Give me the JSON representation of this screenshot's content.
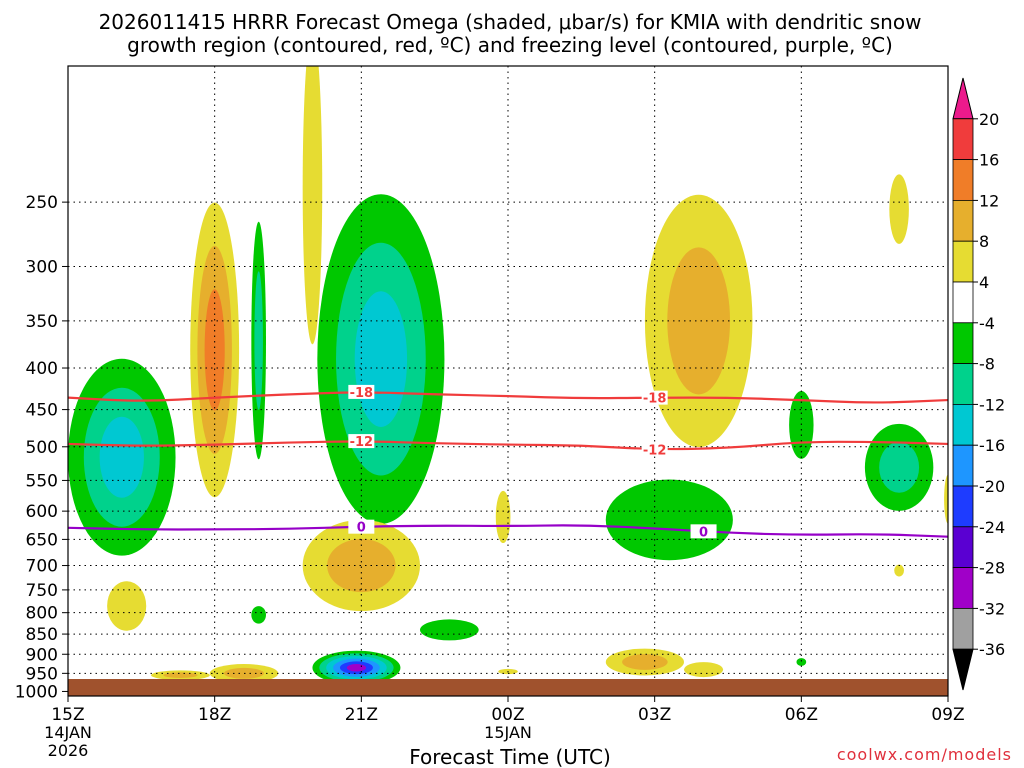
{
  "chart_data": {
    "type": "heatmap",
    "title_line1": "2026011415 HRRR Forecast Omega (shaded, μbar/s) for KMIA with dendritic snow",
    "title_line2": "growth region (contoured, red, ºC) and freezing level (contoured, purple, ºC)",
    "xlabel": "Forecast Time (UTC)",
    "ylabel": "",
    "watermark": "coolwx.com/models",
    "x_axis": {
      "unit": "hours",
      "range": [
        0,
        18
      ],
      "ticks": [
        {
          "h": 0,
          "label": "15Z",
          "sub1": "14JAN",
          "sub2": "2026"
        },
        {
          "h": 3,
          "label": "18Z"
        },
        {
          "h": 6,
          "label": "21Z"
        },
        {
          "h": 9,
          "label": "00Z",
          "sub1": "15JAN"
        },
        {
          "h": 12,
          "label": "03Z"
        },
        {
          "h": 15,
          "label": "06Z"
        },
        {
          "h": 18,
          "label": "09Z"
        }
      ]
    },
    "y_axis": {
      "unit": "hPa",
      "range": [
        1013,
        170
      ],
      "ticks": [
        250,
        300,
        350,
        400,
        450,
        500,
        550,
        600,
        650,
        700,
        750,
        800,
        850,
        900,
        950,
        1000
      ]
    },
    "grid": true,
    "ground_color": "#a0522d",
    "colorbar": {
      "labels": [
        "20",
        "16",
        "12",
        "8",
        "4",
        "-4",
        "-8",
        "-12",
        "-16",
        "-20",
        "-24",
        "-28",
        "-32",
        "-36"
      ],
      "bins": [
        {
          "range": [
            20,
            24
          ],
          "color": "#ec1a8c"
        },
        {
          "range": [
            16,
            20
          ],
          "color": "#f03c3c"
        },
        {
          "range": [
            12,
            16
          ],
          "color": "#f07d28"
        },
        {
          "range": [
            8,
            12
          ],
          "color": "#e6af2d"
        },
        {
          "range": [
            4,
            8
          ],
          "color": "#e6dc32"
        },
        {
          "range": [
            -4,
            4
          ],
          "color": "#ffffff"
        },
        {
          "range": [
            -8,
            -4
          ],
          "color": "#00c800"
        },
        {
          "range": [
            -12,
            -8
          ],
          "color": "#00d28c"
        },
        {
          "range": [
            -16,
            -12
          ],
          "color": "#00c8d2"
        },
        {
          "range": [
            -20,
            -16
          ],
          "color": "#1e96ff"
        },
        {
          "range": [
            -24,
            -20
          ],
          "color": "#1e3cff"
        },
        {
          "range": [
            -28,
            -24
          ],
          "color": "#5a00d2"
        },
        {
          "range": [
            -32,
            -28
          ],
          "color": "#a000c8"
        },
        {
          "range": [
            -36,
            -32
          ],
          "color": "#a0a0a0"
        },
        {
          "range": [
            -40,
            -36
          ],
          "color": "#000000"
        }
      ]
    },
    "omega_features": [
      {
        "h": 1.1,
        "p": 515,
        "rh": 1.1,
        "rp": 140,
        "levels": [
          -4,
          -8,
          -12
        ]
      },
      {
        "h": 1.2,
        "p": 785,
        "rh": 0.4,
        "rp": 55,
        "levels": [
          4
        ]
      },
      {
        "h": 2.3,
        "p": 955,
        "rh": 0.6,
        "rp": 13,
        "levels": [
          4,
          8
        ]
      },
      {
        "h": 3.0,
        "p": 380,
        "rh": 0.5,
        "rp": 150,
        "levels": [
          4,
          8,
          12
        ]
      },
      {
        "h": 3.6,
        "p": 950,
        "rh": 0.7,
        "rp": 25,
        "levels": [
          4,
          8
        ]
      },
      {
        "h": 3.9,
        "p": 370,
        "rh": 0.15,
        "rp": 120,
        "levels": [
          -4,
          -8
        ]
      },
      {
        "h": 3.9,
        "p": 805,
        "rh": 0.15,
        "rp": 20,
        "levels": [
          -4
        ]
      },
      {
        "h": 5.0,
        "p": 240,
        "rh": 0.2,
        "rp": 100,
        "levels": [
          4
        ]
      },
      {
        "h": 6.4,
        "p": 390,
        "rh": 1.3,
        "rp": 170,
        "levels": [
          -4,
          -8,
          -12
        ]
      },
      {
        "h": 6.0,
        "p": 700,
        "rh": 1.2,
        "rp": 90,
        "levels": [
          4,
          8
        ]
      },
      {
        "h": 5.9,
        "p": 935,
        "rh": 0.9,
        "rp": 45,
        "levels": [
          -4,
          -8,
          -12,
          -16,
          -20,
          -28
        ]
      },
      {
        "h": 7.8,
        "p": 840,
        "rh": 0.6,
        "rp": 25,
        "levels": [
          -4
        ]
      },
      {
        "h": 8.9,
        "p": 610,
        "rh": 0.15,
        "rp": 45,
        "levels": [
          4
        ]
      },
      {
        "h": 9.0,
        "p": 945,
        "rh": 0.2,
        "rp": 7,
        "levels": [
          4
        ]
      },
      {
        "h": 11.8,
        "p": 920,
        "rh": 0.8,
        "rp": 35,
        "levels": [
          4,
          8
        ]
      },
      {
        "h": 12.9,
        "p": 350,
        "rh": 1.1,
        "rp": 120,
        "levels": [
          4,
          8
        ]
      },
      {
        "h": 12.3,
        "p": 615,
        "rh": 1.3,
        "rp": 70,
        "levels": [
          -4
        ]
      },
      {
        "h": 13.0,
        "p": 940,
        "rh": 0.4,
        "rp": 20,
        "levels": [
          4
        ]
      },
      {
        "h": 15.0,
        "p": 470,
        "rh": 0.25,
        "rp": 45,
        "levels": [
          -4
        ]
      },
      {
        "h": 15.0,
        "p": 920,
        "rh": 0.1,
        "rp": 10,
        "levels": [
          -4
        ]
      },
      {
        "h": 17.0,
        "p": 530,
        "rh": 0.7,
        "rp": 65,
        "levels": [
          -4,
          -8
        ]
      },
      {
        "h": 17.0,
        "p": 255,
        "rh": 0.2,
        "rp": 25,
        "levels": [
          4
        ]
      },
      {
        "h": 17.0,
        "p": 710,
        "rh": 0.1,
        "rp": 12,
        "levels": [
          4
        ]
      },
      {
        "h": 18.0,
        "p": 580,
        "rh": 0.08,
        "rp": 40,
        "levels": [
          4
        ]
      }
    ],
    "contours": [
      {
        "name": "-18",
        "color": "#f03c3c",
        "labels": [
          {
            "h": 6.0,
            "text": "-18"
          },
          {
            "h": 12.0,
            "text": "-18"
          }
        ],
        "points": [
          [
            0,
            435
          ],
          [
            1.5,
            440
          ],
          [
            3,
            435
          ],
          [
            4.5,
            431
          ],
          [
            6,
            428
          ],
          [
            7.5,
            431
          ],
          [
            9,
            433
          ],
          [
            10.5,
            436
          ],
          [
            12,
            435
          ],
          [
            13.5,
            435
          ],
          [
            15,
            438
          ],
          [
            16.5,
            442
          ],
          [
            18,
            438
          ]
        ]
      },
      {
        "name": "-12",
        "color": "#f03c3c",
        "labels": [
          {
            "h": 6.0,
            "text": "-12"
          },
          {
            "h": 12.0,
            "text": "-12"
          }
        ],
        "points": [
          [
            0,
            496
          ],
          [
            1.5,
            499
          ],
          [
            3,
            497
          ],
          [
            4.5,
            494
          ],
          [
            6,
            492
          ],
          [
            7.5,
            495
          ],
          [
            9,
            497
          ],
          [
            10.5,
            498
          ],
          [
            12,
            504
          ],
          [
            13.5,
            502
          ],
          [
            15,
            493
          ],
          [
            16.5,
            493
          ],
          [
            18,
            496
          ]
        ]
      },
      {
        "name": "0",
        "color": "#9600c8",
        "labels": [
          {
            "h": 6.0,
            "text": "0"
          },
          {
            "h": 13.0,
            "text": "0"
          }
        ],
        "points": [
          [
            0,
            629
          ],
          [
            1.5,
            632
          ],
          [
            3,
            632
          ],
          [
            4.5,
            631
          ],
          [
            6,
            627
          ],
          [
            7.5,
            625
          ],
          [
            9,
            626
          ],
          [
            10.5,
            624
          ],
          [
            12,
            630
          ],
          [
            13.5,
            638
          ],
          [
            15,
            642
          ],
          [
            16.5,
            640
          ],
          [
            18,
            645
          ]
        ]
      }
    ]
  }
}
